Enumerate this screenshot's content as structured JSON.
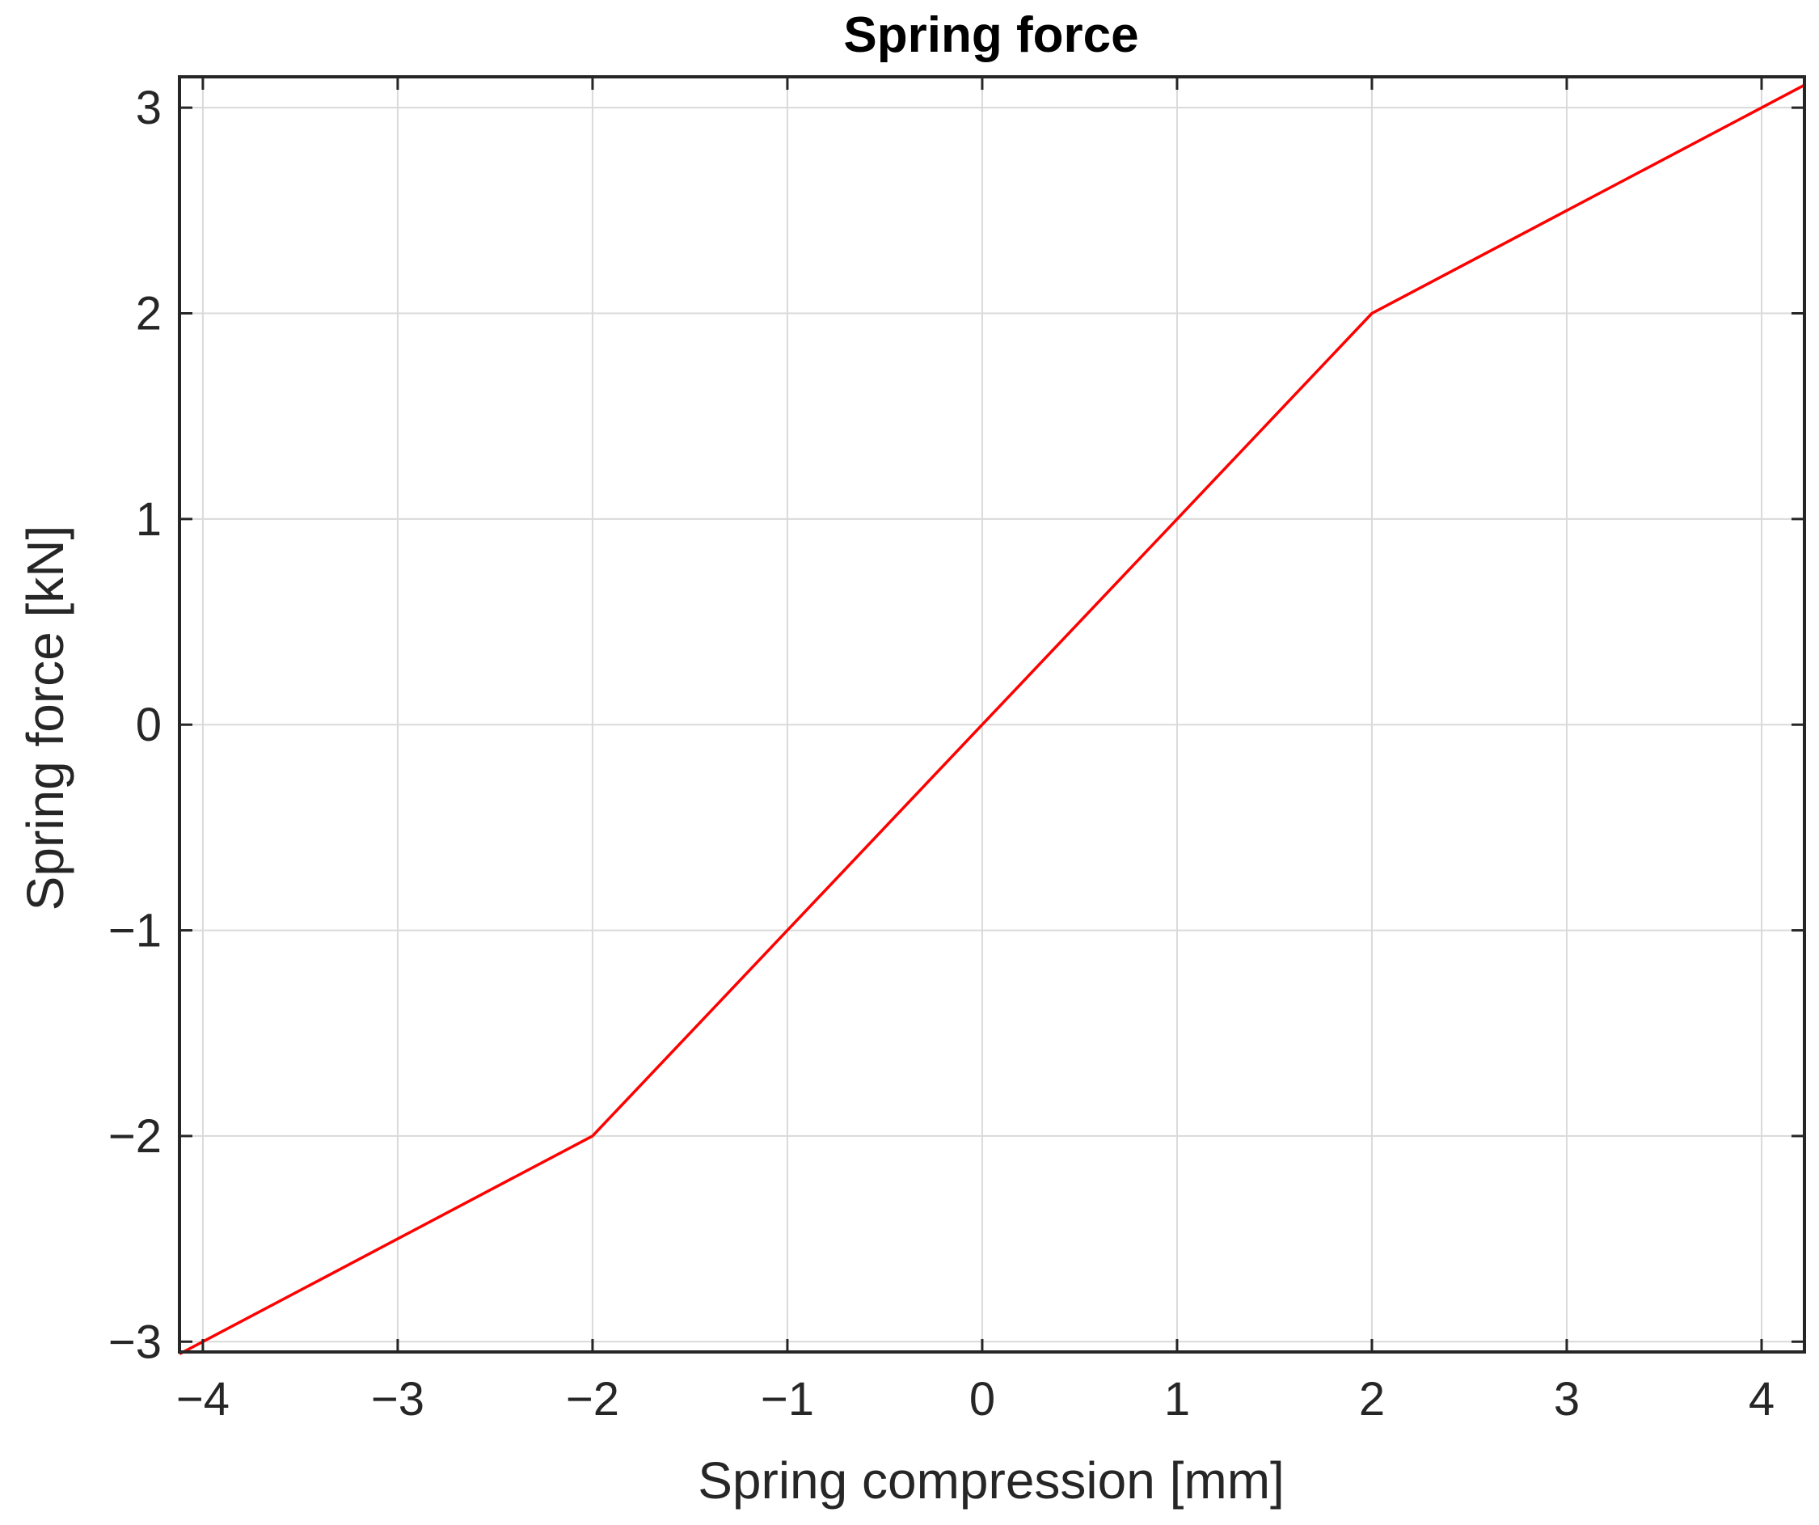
{
  "chart_data": {
    "type": "line",
    "title": "Spring force",
    "xlabel": "Spring compression [mm]",
    "ylabel": "Spring force [kN]",
    "xlim": [
      -4.12,
      4.22
    ],
    "ylim": [
      -3.05,
      3.15
    ],
    "x_ticks": [
      -4,
      -3,
      -2,
      -1,
      0,
      1,
      2,
      3,
      4
    ],
    "x_tick_labels": [
      "−4",
      "−3",
      "−2",
      "−1",
      "0",
      "1",
      "2",
      "3",
      "4"
    ],
    "y_ticks": [
      -3,
      -2,
      -1,
      0,
      1,
      2,
      3
    ],
    "y_tick_labels": [
      "−3",
      "−2",
      "−1",
      "0",
      "1",
      "2",
      "3"
    ],
    "grid": true,
    "series": [
      {
        "color": "#ff0000",
        "x": [
          -4.12,
          -2,
          -1,
          0,
          1,
          2,
          4.22
        ],
        "y": [
          -3.06,
          -2,
          -1,
          0,
          1,
          2,
          3.11
        ]
      }
    ]
  }
}
